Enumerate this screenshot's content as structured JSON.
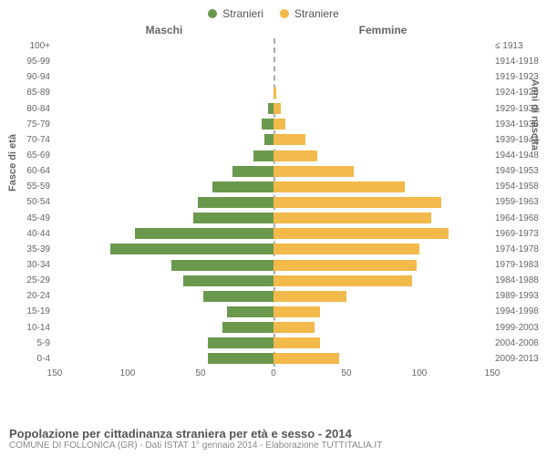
{
  "chart": {
    "type": "population-pyramid",
    "legend": [
      {
        "label": "Stranieri",
        "color": "#6a994e"
      },
      {
        "label": "Straniere",
        "color": "#f2b94b"
      }
    ],
    "column_headers": {
      "left": "Maschi",
      "right": "Femmine"
    },
    "axis_titles": {
      "left": "Fasce di età",
      "right": "Anni di nascita"
    },
    "x_axis": {
      "max": 150,
      "ticks": [
        150,
        100,
        50,
        0,
        50,
        100,
        150
      ]
    },
    "colors": {
      "male_bar": "#6a994e",
      "female_bar": "#f2b94b",
      "background": "#ffffff",
      "text": "#666666",
      "center_dash": "#aaaaaa"
    },
    "fontsize": {
      "tick": 10,
      "label": 10,
      "header": 12,
      "legend": 12,
      "title": 13,
      "sub": 10
    },
    "rows": [
      {
        "age": "100+",
        "male": 0,
        "female": 0,
        "birth": "≤ 1913"
      },
      {
        "age": "95-99",
        "male": 0,
        "female": 0,
        "birth": "1914-1918"
      },
      {
        "age": "90-94",
        "male": 0,
        "female": 0,
        "birth": "1919-1923"
      },
      {
        "age": "85-89",
        "male": 0,
        "female": 2,
        "birth": "1924-1928"
      },
      {
        "age": "80-84",
        "male": 4,
        "female": 5,
        "birth": "1929-1933"
      },
      {
        "age": "75-79",
        "male": 8,
        "female": 8,
        "birth": "1934-1938"
      },
      {
        "age": "70-74",
        "male": 6,
        "female": 22,
        "birth": "1939-1943"
      },
      {
        "age": "65-69",
        "male": 14,
        "female": 30,
        "birth": "1944-1948"
      },
      {
        "age": "60-64",
        "male": 28,
        "female": 55,
        "birth": "1949-1953"
      },
      {
        "age": "55-59",
        "male": 42,
        "female": 90,
        "birth": "1954-1958"
      },
      {
        "age": "50-54",
        "male": 52,
        "female": 115,
        "birth": "1959-1963"
      },
      {
        "age": "45-49",
        "male": 55,
        "female": 108,
        "birth": "1964-1968"
      },
      {
        "age": "40-44",
        "male": 95,
        "female": 120,
        "birth": "1969-1973"
      },
      {
        "age": "35-39",
        "male": 112,
        "female": 100,
        "birth": "1974-1978"
      },
      {
        "age": "30-34",
        "male": 70,
        "female": 98,
        "birth": "1979-1983"
      },
      {
        "age": "25-29",
        "male": 62,
        "female": 95,
        "birth": "1984-1988"
      },
      {
        "age": "20-24",
        "male": 48,
        "female": 50,
        "birth": "1989-1993"
      },
      {
        "age": "15-19",
        "male": 32,
        "female": 32,
        "birth": "1994-1998"
      },
      {
        "age": "10-14",
        "male": 35,
        "female": 28,
        "birth": "1999-2003"
      },
      {
        "age": "5-9",
        "male": 45,
        "female": 32,
        "birth": "2004-2008"
      },
      {
        "age": "0-4",
        "male": 45,
        "female": 45,
        "birth": "2009-2013"
      }
    ],
    "footer": {
      "title": "Popolazione per cittadinanza straniera per età e sesso - 2014",
      "subtitle": "COMUNE DI FOLLONICA (GR) - Dati ISTAT 1° gennaio 2014 - Elaborazione TUTTITALIA.IT"
    }
  }
}
